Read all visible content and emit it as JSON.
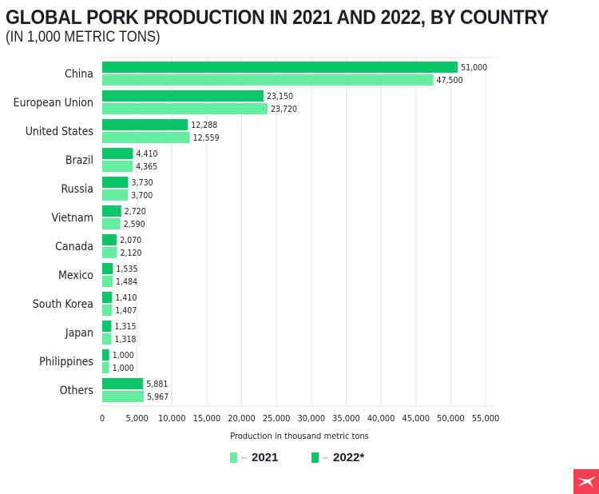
{
  "chart_data": {
    "type": "bar",
    "orientation": "horizontal",
    "title": "GLOBAL PORK PRODUCTION IN 2021 AND 2022, BY COUNTRY",
    "subtitle": "(IN 1,000 METRIC TONS)",
    "xlabel": "Production in thousand metric tons",
    "ylabel": "",
    "xlim": [
      0,
      55000
    ],
    "xticks": [
      "0",
      "5,000",
      "10,000",
      "15,000",
      "20,000",
      "25,000",
      "30,000",
      "35,000",
      "40,000",
      "45,000",
      "50,000",
      "55,000"
    ],
    "grid": true,
    "legend_position": "bottom",
    "categories": [
      "China",
      "European Union",
      "United States",
      "Brazil",
      "Russia",
      "Vietnam",
      "Canada",
      "Mexico",
      "South Korea",
      "Japan",
      "Philippines",
      "Others"
    ],
    "series": [
      {
        "name": "2022*",
        "color": "#0dc66a",
        "values": [
          51000,
          23150,
          12288,
          4410,
          3730,
          2720,
          2070,
          1535,
          1410,
          1315,
          1000,
          5881
        ]
      },
      {
        "name": "2021",
        "color": "#66eea0",
        "values": [
          47500,
          23720,
          12559,
          4365,
          3700,
          2590,
          2120,
          1484,
          1407,
          1318,
          1000,
          5967
        ]
      }
    ]
  },
  "legend": [
    {
      "label": "2021",
      "color": "#66eea0"
    },
    {
      "label": "2022*",
      "color": "#0dc66a"
    }
  ],
  "logo": {
    "color": "#f43f54",
    "name": "x-logo-icon"
  }
}
